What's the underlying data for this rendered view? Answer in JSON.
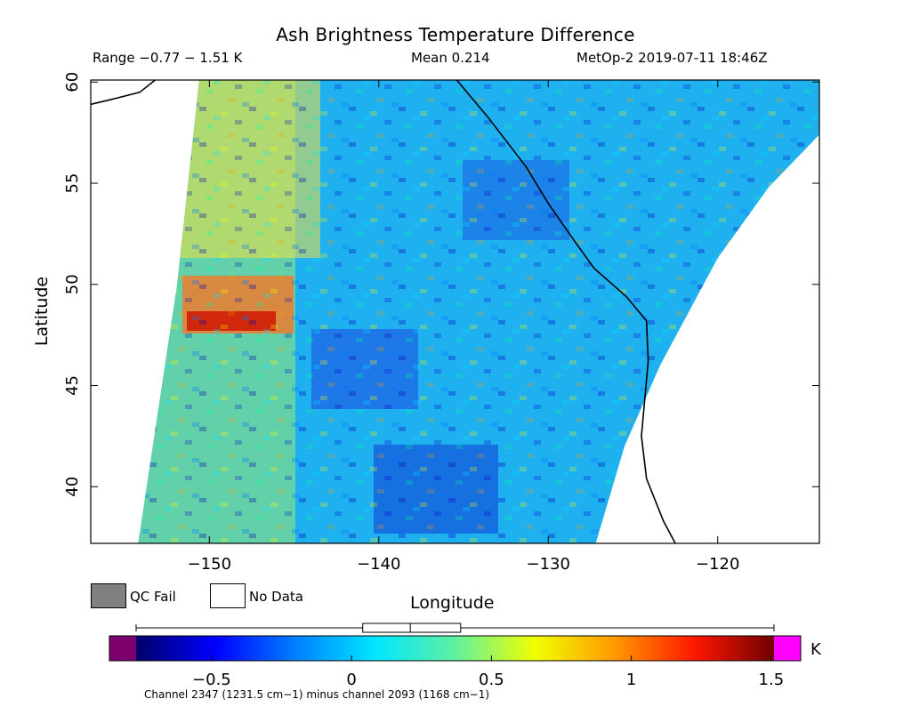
{
  "title": "Ash Brightness Temperature Difference",
  "range_text": "Range −0.77 − 1.51 K",
  "mean_text": "Mean 0.214",
  "source_text": "MetOp-2 2019-07-11 18:46Z",
  "map": {
    "lon_range": [
      -157,
      -114
    ],
    "lat_range": [
      37.2,
      60.1
    ],
    "xlabel": "Longitude",
    "ylabel": "Latitude",
    "lon_ticks": [
      -150,
      -140,
      -130,
      -120
    ],
    "lon_tick_labels": [
      "−150",
      "−140",
      "−130",
      "−120"
    ],
    "lat_ticks": [
      40,
      45,
      50,
      55,
      60
    ],
    "lat_tick_labels": [
      "40",
      "45",
      "50",
      "55",
      "60"
    ],
    "swath_west_edge": [
      [
        -154.2,
        37.2
      ],
      [
        -152.8,
        45
      ],
      [
        -151.9,
        50
      ],
      [
        -150.6,
        60.1
      ]
    ],
    "swath_east_edge": [
      [
        -114,
        57.4
      ],
      [
        -117,
        54.8
      ],
      [
        -120,
        51.3
      ],
      [
        -123.4,
        46
      ],
      [
        -125.5,
        42
      ],
      [
        -127.2,
        37.2
      ]
    ],
    "coastline": [
      [
        -135.4,
        60.1
      ],
      [
        -133.5,
        58.2
      ],
      [
        -131.3,
        55.8
      ],
      [
        -130,
        54
      ],
      [
        -128.5,
        52.2
      ],
      [
        -127.3,
        50.8
      ],
      [
        -125.4,
        49.4
      ],
      [
        -124.2,
        48.2
      ],
      [
        -124.1,
        46.2
      ],
      [
        -124.5,
        42.5
      ],
      [
        -124.2,
        40.4
      ],
      [
        -123.2,
        38.3
      ],
      [
        -122.5,
        37.2
      ]
    ],
    "alaska_coast": [
      [
        -157,
        58.9
      ],
      [
        -155.5,
        59.2
      ],
      [
        -154.1,
        59.5
      ],
      [
        -153.2,
        60.1
      ]
    ],
    "colors": {
      "no_data": "#ffffff",
      "qc_fail": "#808080",
      "coast": "#000000"
    }
  },
  "legend": {
    "qc_fail": "QC Fail",
    "no_data": "No Data"
  },
  "colorbar": {
    "min": -0.77,
    "max": 1.51,
    "ticks": [
      -0.5,
      0,
      0.5,
      1,
      1.5
    ],
    "tick_labels": [
      "−0.5",
      "0",
      "0.5",
      "1",
      "1.5"
    ],
    "units": "K",
    "under_color": "#7d006e",
    "over_color": "#ff00ff",
    "box_q1": 0.04,
    "box_median": 0.21,
    "box_q3": 0.39,
    "stops": [
      "#00006a",
      "#0000ff",
      "#0080ff",
      "#00e6ff",
      "#60f0a0",
      "#f0ff00",
      "#ff9900",
      "#ff1800",
      "#700000"
    ]
  },
  "channel_note": "Channel 2347 (1231.5 cm−1) minus channel 2093 (1168 cm−1)"
}
